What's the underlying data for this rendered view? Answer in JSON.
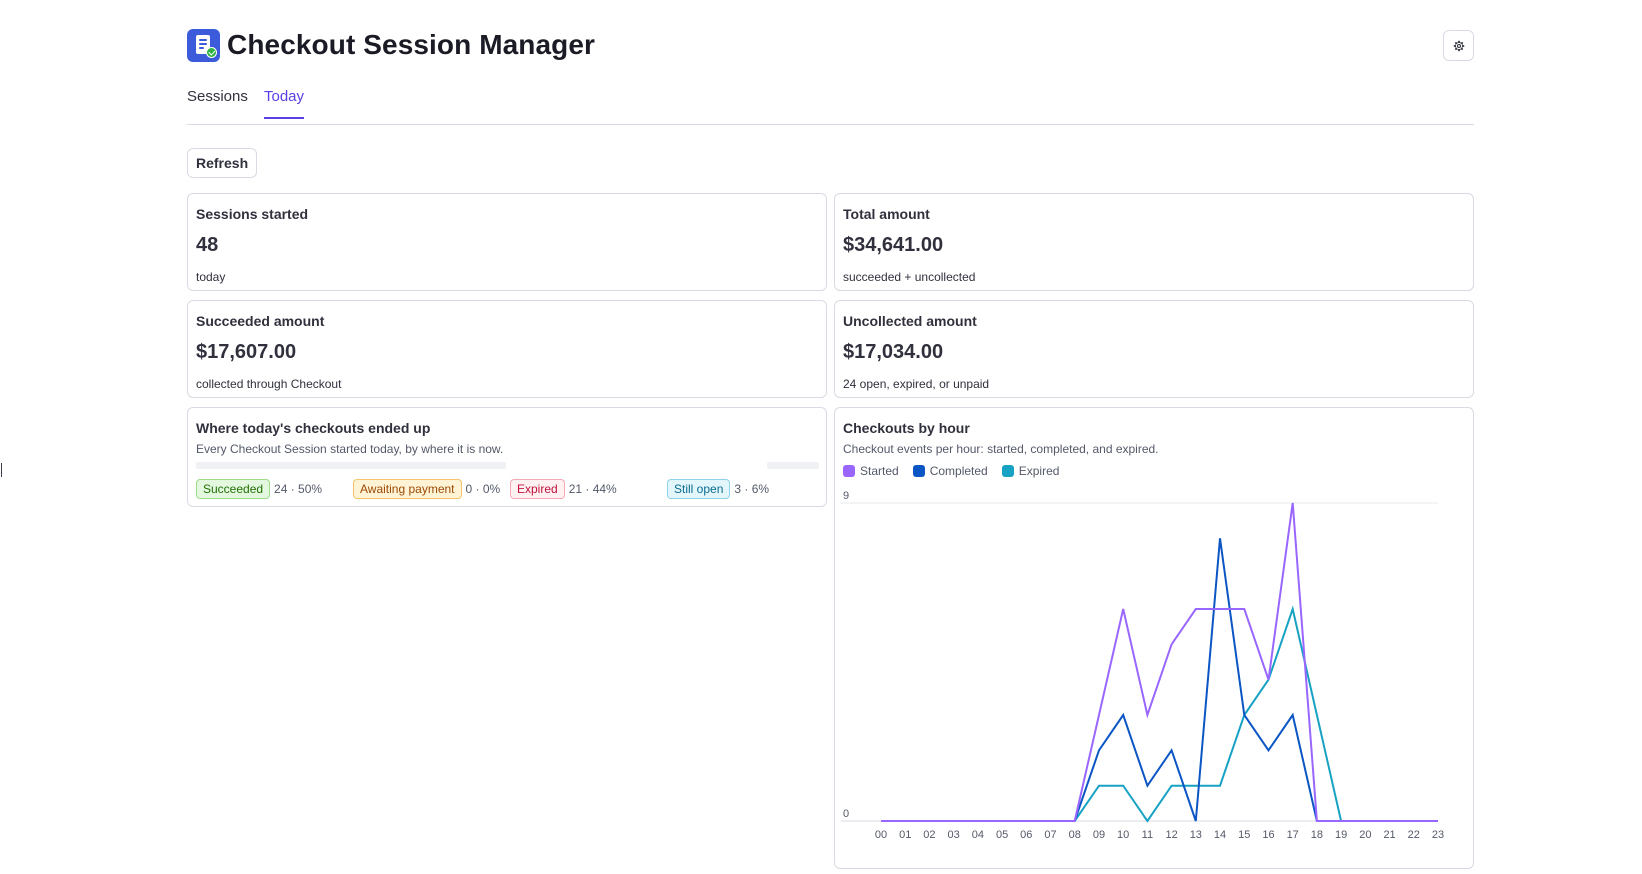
{
  "app": {
    "title": "Checkout Session Manager",
    "logo_icon": "receipt-check-icon",
    "settings_icon": "gear-icon"
  },
  "tabs": [
    {
      "label": "Sessions",
      "active": false
    },
    {
      "label": "Today",
      "active": true
    }
  ],
  "toolbar": {
    "refresh_label": "Refresh"
  },
  "stats": {
    "sessions_started": {
      "label": "Sessions started",
      "value": "48",
      "sub": "today"
    },
    "total_amount": {
      "label": "Total amount",
      "value": "$34,641.00",
      "sub": "succeeded + uncollected"
    },
    "succeeded_amount": {
      "label": "Succeeded amount",
      "value": "$17,607.00",
      "sub": "collected through Checkout"
    },
    "uncollected_amount": {
      "label": "Uncollected amount",
      "value": "$17,034.00",
      "sub": "24 open, expired, or unpaid"
    }
  },
  "outcomes": {
    "title": "Where today's checkouts ended up",
    "description": "Every Checkout Session started today, by where it is now.",
    "items": [
      {
        "label": "Succeeded",
        "count": "24 · 50%",
        "color": "#217005"
      },
      {
        "label": "Awaiting payment",
        "count": "0 · 0%",
        "color": "#9b4a05"
      },
      {
        "label": "Expired",
        "count": "21 · 44%",
        "color": "#c0123c"
      },
      {
        "label": "Still open",
        "count": "3 · 6%",
        "color": "#0a6b8f"
      }
    ]
  },
  "hourly": {
    "title": "Checkouts by hour",
    "description": "Checkout events per hour: started, completed, and expired."
  },
  "chart_data": {
    "type": "line",
    "title": "Checkouts by hour",
    "x": [
      "00",
      "01",
      "02",
      "03",
      "04",
      "05",
      "06",
      "07",
      "08",
      "09",
      "10",
      "11",
      "12",
      "13",
      "14",
      "15",
      "16",
      "17",
      "18",
      "19",
      "20",
      "21",
      "22",
      "23"
    ],
    "ylim": [
      0,
      9
    ],
    "y_ticks": [
      "0",
      "9"
    ],
    "grid": true,
    "legend_position": "top-left",
    "series": [
      {
        "name": "Started",
        "color": "#9966ff",
        "values": [
          0,
          0,
          0,
          0,
          0,
          0,
          0,
          0,
          0,
          3,
          6,
          3,
          5,
          6,
          6,
          6,
          4,
          9,
          0,
          0,
          0,
          0,
          0,
          0
        ]
      },
      {
        "name": "Completed",
        "color": "#0b56c4",
        "values": [
          0,
          0,
          0,
          0,
          0,
          0,
          0,
          0,
          0,
          2,
          3,
          1,
          2,
          0,
          8,
          3,
          2,
          3,
          0,
          0,
          0,
          0,
          0,
          0
        ]
      },
      {
        "name": "Expired",
        "color": "#17a2c4",
        "values": [
          0,
          0,
          0,
          0,
          0,
          0,
          0,
          0,
          0,
          1,
          1,
          0,
          1,
          1,
          1,
          3,
          4,
          6,
          3,
          0,
          0,
          0,
          0,
          0
        ]
      }
    ]
  }
}
